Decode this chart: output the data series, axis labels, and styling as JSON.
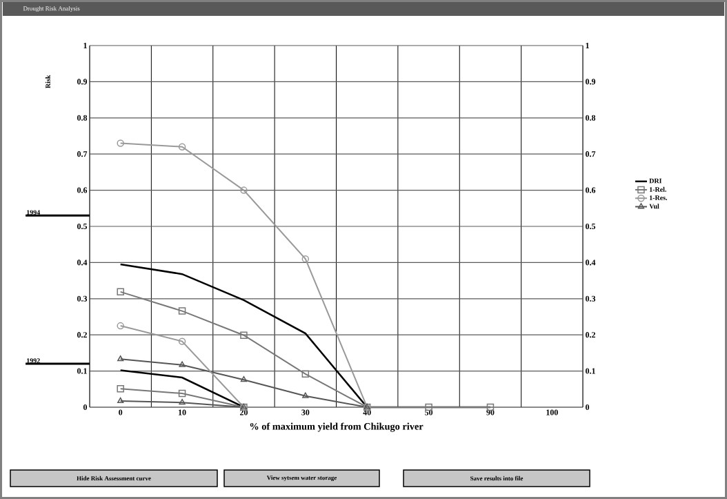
{
  "chart_data": {
    "type": "line",
    "title": "Drought Risk Analysis",
    "xlabel": "% of maximum yield from Chikugo river",
    "ylabel": "Risk",
    "categories": [
      "0",
      "10",
      "20",
      "30",
      "40",
      "50",
      "90",
      "100"
    ],
    "series": [
      {
        "name": "DRI",
        "color": "#000000",
        "marker": "none",
        "values": [
          0.395,
          0.368,
          0.296,
          0.204,
          0,
          0,
          0,
          null
        ]
      },
      {
        "name": "1-Rel.",
        "color": "#777777",
        "marker": "square",
        "values": [
          0.319,
          0.266,
          0.199,
          0.092,
          0,
          0,
          0,
          null
        ]
      },
      {
        "name": "1-Res.",
        "color": "#999999",
        "marker": "circle",
        "values": [
          0.73,
          0.72,
          0.6,
          0.41,
          0,
          null,
          null,
          null
        ]
      },
      {
        "name": "Vul",
        "color": "#555555",
        "marker": "triangle",
        "values": [
          0.133,
          0.117,
          0.076,
          0.031,
          0,
          null,
          null,
          null
        ]
      },
      {
        "color": "#000000",
        "marker": "none",
        "values": [
          0.102,
          0.082,
          0,
          null,
          null,
          null,
          null,
          null
        ]
      },
      {
        "color": "#777777",
        "marker": "square",
        "values": [
          0.051,
          0.038,
          0,
          null,
          null,
          null,
          null,
          null
        ]
      },
      {
        "color": "#999999",
        "marker": "circle",
        "values": [
          0.225,
          0.182,
          0,
          null,
          null,
          null,
          null,
          null
        ]
      },
      {
        "color": "#555555",
        "marker": "triangle",
        "values": [
          0.017,
          0.013,
          0,
          null,
          null,
          null,
          null,
          null
        ]
      }
    ],
    "ylim": [
      0,
      1
    ],
    "yticks": [
      0,
      0.1,
      0.2,
      0.3,
      0.4,
      0.5,
      0.6,
      0.7,
      0.8,
      0.9,
      1
    ],
    "y2lim": [
      0,
      1
    ],
    "y2ticks": [
      0,
      0.1,
      0.2,
      0.3,
      0.4,
      0.5,
      0.6,
      0.7,
      0.8,
      0.9,
      1
    ],
    "grid": true,
    "legend": "right",
    "annotations": [
      "1994",
      "1992",
      "Hide Risk Assessment curve",
      "View sytsem water storage",
      "Save results into file"
    ]
  }
}
